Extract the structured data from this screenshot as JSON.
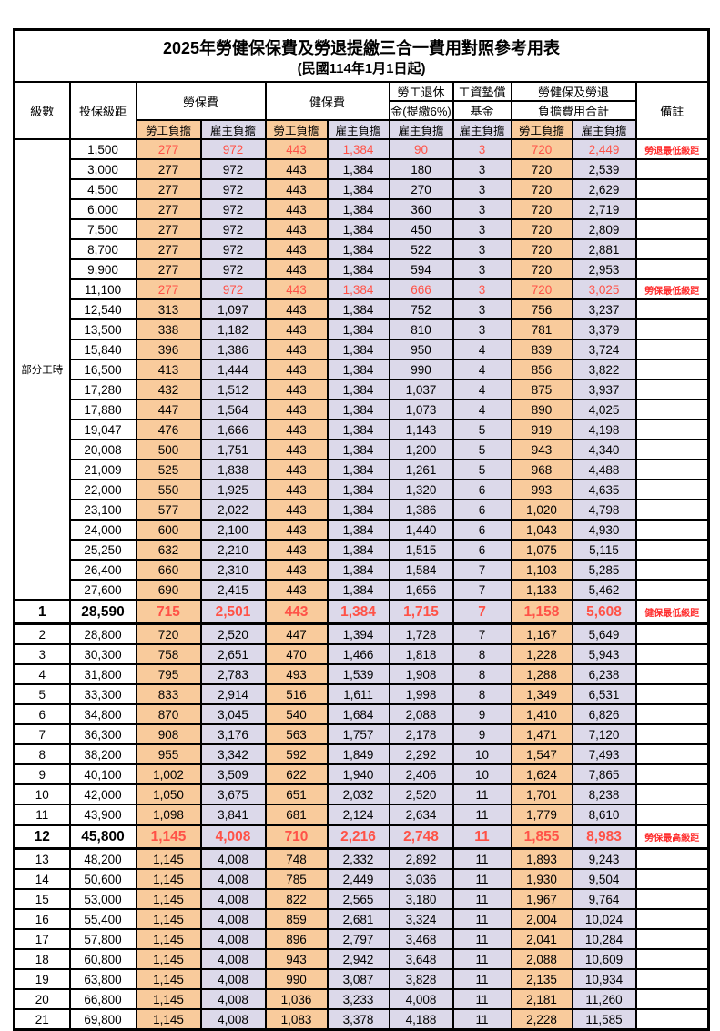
{
  "title": "2025年勞健保保費及勞退提繳三合一費用對照參考用表",
  "subtitle": "(民國114年1月1日起)",
  "colors": {
    "employee_cell_bg": "#F9CB9C",
    "employer_cell_bg": "#DCD9EA",
    "highlight_value_red": "#FF5247",
    "remark_red": "#FF2D2D",
    "grid_border": "#000000"
  },
  "header": {
    "level": "級數",
    "bracket": "投保級距",
    "labor_ins": "勞保費",
    "health_ins": "健保費",
    "pension_line1": "勞工退休",
    "pension_line2": "金(提繳6%)",
    "wage_fund_line1": "工資墊償",
    "wage_fund_line2": "基金",
    "total_line1": "勞健保及勞退",
    "total_line2": "負擔費用合計",
    "remark": "備註",
    "employee_share": "勞工負擔",
    "employer_share": "雇主負擔"
  },
  "group_label": "部分工時",
  "group_row_span": 23,
  "rows": [
    {
      "level": "",
      "bracket": "1,500",
      "values": [
        "277",
        "972",
        "443",
        "1,384",
        "90",
        "3",
        "720",
        "2,449"
      ],
      "remark": "勞退最低級距",
      "flag": "hl"
    },
    {
      "level": "",
      "bracket": "3,000",
      "values": [
        "277",
        "972",
        "443",
        "1,384",
        "180",
        "3",
        "720",
        "2,539"
      ],
      "remark": "",
      "flag": ""
    },
    {
      "level": "",
      "bracket": "4,500",
      "values": [
        "277",
        "972",
        "443",
        "1,384",
        "270",
        "3",
        "720",
        "2,629"
      ],
      "remark": "",
      "flag": ""
    },
    {
      "level": "",
      "bracket": "6,000",
      "values": [
        "277",
        "972",
        "443",
        "1,384",
        "360",
        "3",
        "720",
        "2,719"
      ],
      "remark": "",
      "flag": ""
    },
    {
      "level": "",
      "bracket": "7,500",
      "values": [
        "277",
        "972",
        "443",
        "1,384",
        "450",
        "3",
        "720",
        "2,809"
      ],
      "remark": "",
      "flag": ""
    },
    {
      "level": "",
      "bracket": "8,700",
      "values": [
        "277",
        "972",
        "443",
        "1,384",
        "522",
        "3",
        "720",
        "2,881"
      ],
      "remark": "",
      "flag": ""
    },
    {
      "level": "",
      "bracket": "9,900",
      "values": [
        "277",
        "972",
        "443",
        "1,384",
        "594",
        "3",
        "720",
        "2,953"
      ],
      "remark": "",
      "flag": ""
    },
    {
      "level": "",
      "bracket": "11,100",
      "values": [
        "277",
        "972",
        "443",
        "1,384",
        "666",
        "3",
        "720",
        "3,025"
      ],
      "remark": "勞保最低級距",
      "flag": "hl"
    },
    {
      "level": "",
      "bracket": "12,540",
      "values": [
        "313",
        "1,097",
        "443",
        "1,384",
        "752",
        "3",
        "756",
        "3,237"
      ],
      "remark": "",
      "flag": ""
    },
    {
      "level": "",
      "bracket": "13,500",
      "values": [
        "338",
        "1,182",
        "443",
        "1,384",
        "810",
        "3",
        "781",
        "3,379"
      ],
      "remark": "",
      "flag": ""
    },
    {
      "level": "",
      "bracket": "15,840",
      "values": [
        "396",
        "1,386",
        "443",
        "1,384",
        "950",
        "4",
        "839",
        "3,724"
      ],
      "remark": "",
      "flag": ""
    },
    {
      "level": "",
      "bracket": "16,500",
      "values": [
        "413",
        "1,444",
        "443",
        "1,384",
        "990",
        "4",
        "856",
        "3,822"
      ],
      "remark": "",
      "flag": ""
    },
    {
      "level": "",
      "bracket": "17,280",
      "values": [
        "432",
        "1,512",
        "443",
        "1,384",
        "1,037",
        "4",
        "875",
        "3,937"
      ],
      "remark": "",
      "flag": ""
    },
    {
      "level": "",
      "bracket": "17,880",
      "values": [
        "447",
        "1,564",
        "443",
        "1,384",
        "1,073",
        "4",
        "890",
        "4,025"
      ],
      "remark": "",
      "flag": ""
    },
    {
      "level": "",
      "bracket": "19,047",
      "values": [
        "476",
        "1,666",
        "443",
        "1,384",
        "1,143",
        "5",
        "919",
        "4,198"
      ],
      "remark": "",
      "flag": ""
    },
    {
      "level": "",
      "bracket": "20,008",
      "values": [
        "500",
        "1,751",
        "443",
        "1,384",
        "1,200",
        "5",
        "943",
        "4,340"
      ],
      "remark": "",
      "flag": ""
    },
    {
      "level": "",
      "bracket": "21,009",
      "values": [
        "525",
        "1,838",
        "443",
        "1,384",
        "1,261",
        "5",
        "968",
        "4,488"
      ],
      "remark": "",
      "flag": ""
    },
    {
      "level": "",
      "bracket": "22,000",
      "values": [
        "550",
        "1,925",
        "443",
        "1,384",
        "1,320",
        "6",
        "993",
        "4,635"
      ],
      "remark": "",
      "flag": ""
    },
    {
      "level": "",
      "bracket": "23,100",
      "values": [
        "577",
        "2,022",
        "443",
        "1,384",
        "1,386",
        "6",
        "1,020",
        "4,798"
      ],
      "remark": "",
      "flag": ""
    },
    {
      "level": "",
      "bracket": "24,000",
      "values": [
        "600",
        "2,100",
        "443",
        "1,384",
        "1,440",
        "6",
        "1,043",
        "4,930"
      ],
      "remark": "",
      "flag": ""
    },
    {
      "level": "",
      "bracket": "25,250",
      "values": [
        "632",
        "2,210",
        "443",
        "1,384",
        "1,515",
        "6",
        "1,075",
        "5,115"
      ],
      "remark": "",
      "flag": ""
    },
    {
      "level": "",
      "bracket": "26,400",
      "values": [
        "660",
        "2,310",
        "443",
        "1,384",
        "1,584",
        "7",
        "1,103",
        "5,285"
      ],
      "remark": "",
      "flag": ""
    },
    {
      "level": "",
      "bracket": "27,600",
      "values": [
        "690",
        "2,415",
        "443",
        "1,384",
        "1,656",
        "7",
        "1,133",
        "5,462"
      ],
      "remark": "",
      "flag": ""
    },
    {
      "level": "1",
      "bracket": "28,590",
      "values": [
        "715",
        "2,501",
        "443",
        "1,384",
        "1,715",
        "7",
        "1,158",
        "5,608"
      ],
      "remark": "健保最低級距",
      "flag": "hl big"
    },
    {
      "level": "2",
      "bracket": "28,800",
      "values": [
        "720",
        "2,520",
        "447",
        "1,394",
        "1,728",
        "7",
        "1,167",
        "5,649"
      ],
      "remark": "",
      "flag": ""
    },
    {
      "level": "3",
      "bracket": "30,300",
      "values": [
        "758",
        "2,651",
        "470",
        "1,466",
        "1,818",
        "8",
        "1,228",
        "5,943"
      ],
      "remark": "",
      "flag": ""
    },
    {
      "level": "4",
      "bracket": "31,800",
      "values": [
        "795",
        "2,783",
        "493",
        "1,539",
        "1,908",
        "8",
        "1,288",
        "6,238"
      ],
      "remark": "",
      "flag": ""
    },
    {
      "level": "5",
      "bracket": "33,300",
      "values": [
        "833",
        "2,914",
        "516",
        "1,611",
        "1,998",
        "8",
        "1,349",
        "6,531"
      ],
      "remark": "",
      "flag": ""
    },
    {
      "level": "6",
      "bracket": "34,800",
      "values": [
        "870",
        "3,045",
        "540",
        "1,684",
        "2,088",
        "9",
        "1,410",
        "6,826"
      ],
      "remark": "",
      "flag": ""
    },
    {
      "level": "7",
      "bracket": "36,300",
      "values": [
        "908",
        "3,176",
        "563",
        "1,757",
        "2,178",
        "9",
        "1,471",
        "7,120"
      ],
      "remark": "",
      "flag": ""
    },
    {
      "level": "8",
      "bracket": "38,200",
      "values": [
        "955",
        "3,342",
        "592",
        "1,849",
        "2,292",
        "10",
        "1,547",
        "7,493"
      ],
      "remark": "",
      "flag": ""
    },
    {
      "level": "9",
      "bracket": "40,100",
      "values": [
        "1,002",
        "3,509",
        "622",
        "1,940",
        "2,406",
        "10",
        "1,624",
        "7,865"
      ],
      "remark": "",
      "flag": ""
    },
    {
      "level": "10",
      "bracket": "42,000",
      "values": [
        "1,050",
        "3,675",
        "651",
        "2,032",
        "2,520",
        "11",
        "1,701",
        "8,238"
      ],
      "remark": "",
      "flag": ""
    },
    {
      "level": "11",
      "bracket": "43,900",
      "values": [
        "1,098",
        "3,841",
        "681",
        "2,124",
        "2,634",
        "11",
        "1,779",
        "8,610"
      ],
      "remark": "",
      "flag": ""
    },
    {
      "level": "12",
      "bracket": "45,800",
      "values": [
        "1,145",
        "4,008",
        "710",
        "2,216",
        "2,748",
        "11",
        "1,855",
        "8,983"
      ],
      "remark": "勞保最高級距",
      "flag": "hl big"
    },
    {
      "level": "13",
      "bracket": "48,200",
      "values": [
        "1,145",
        "4,008",
        "748",
        "2,332",
        "2,892",
        "11",
        "1,893",
        "9,243"
      ],
      "remark": "",
      "flag": ""
    },
    {
      "level": "14",
      "bracket": "50,600",
      "values": [
        "1,145",
        "4,008",
        "785",
        "2,449",
        "3,036",
        "11",
        "1,930",
        "9,504"
      ],
      "remark": "",
      "flag": ""
    },
    {
      "level": "15",
      "bracket": "53,000",
      "values": [
        "1,145",
        "4,008",
        "822",
        "2,565",
        "3,180",
        "11",
        "1,967",
        "9,764"
      ],
      "remark": "",
      "flag": ""
    },
    {
      "level": "16",
      "bracket": "55,400",
      "values": [
        "1,145",
        "4,008",
        "859",
        "2,681",
        "3,324",
        "11",
        "2,004",
        "10,024"
      ],
      "remark": "",
      "flag": ""
    },
    {
      "level": "17",
      "bracket": "57,800",
      "values": [
        "1,145",
        "4,008",
        "896",
        "2,797",
        "3,468",
        "11",
        "2,041",
        "10,284"
      ],
      "remark": "",
      "flag": ""
    },
    {
      "level": "18",
      "bracket": "60,800",
      "values": [
        "1,145",
        "4,008",
        "943",
        "2,942",
        "3,648",
        "11",
        "2,088",
        "10,609"
      ],
      "remark": "",
      "flag": ""
    },
    {
      "level": "19",
      "bracket": "63,800",
      "values": [
        "1,145",
        "4,008",
        "990",
        "3,087",
        "3,828",
        "11",
        "2,135",
        "10,934"
      ],
      "remark": "",
      "flag": ""
    },
    {
      "level": "20",
      "bracket": "66,800",
      "values": [
        "1,145",
        "4,008",
        "1,036",
        "3,233",
        "4,008",
        "11",
        "2,181",
        "11,260"
      ],
      "remark": "",
      "flag": ""
    },
    {
      "level": "21",
      "bracket": "69,800",
      "values": [
        "1,145",
        "4,008",
        "1,083",
        "3,378",
        "4,188",
        "11",
        "2,228",
        "11,585"
      ],
      "remark": "",
      "flag": ""
    }
  ]
}
